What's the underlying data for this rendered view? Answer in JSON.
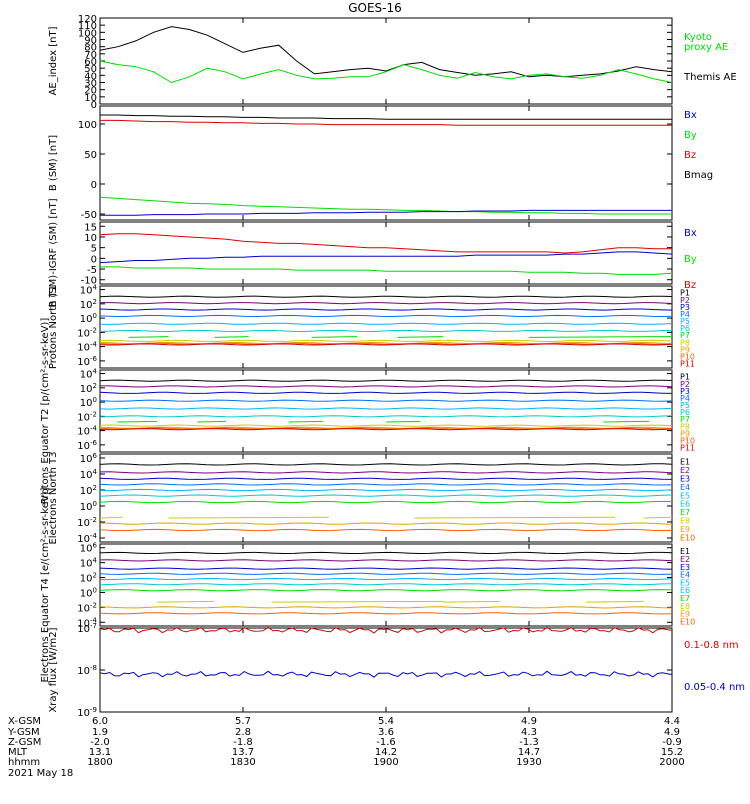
{
  "title": "GOES-16",
  "colors": {
    "black": "#000000",
    "green": "#00dd00",
    "blue": "#0000cc",
    "red": "#dd0000",
    "p": [
      "#000000",
      "#7a007a",
      "#0000cc",
      "#0070ff",
      "#00b4ff",
      "#00cccc",
      "#00dd00",
      "#cccc00",
      "#e8a000",
      "#ff6000",
      "#dd0000"
    ],
    "e": [
      "#000000",
      "#7a007a",
      "#0000cc",
      "#0070ff",
      "#00b4ff",
      "#00cccc",
      "#00dd00",
      "#cccc00",
      "#e8a000",
      "#ff6000",
      "#dd0000"
    ]
  },
  "chart_data": [
    {
      "id": "ae",
      "type": "line",
      "ylabel": "AE_index [nT]",
      "ylim": [
        0,
        120
      ],
      "yticks": [
        "0",
        "10",
        "20",
        "30",
        "40",
        "50",
        "60",
        "70",
        "80",
        "90",
        "100",
        "110",
        "120"
      ],
      "legend": [
        {
          "name": "Kyoto proxy AE",
          "color": "#00dd00"
        },
        {
          "name": "Themis AE",
          "color": "#000000"
        }
      ],
      "series": [
        {
          "name": "Themis AE",
          "color": "#000000",
          "values": [
            75,
            80,
            88,
            100,
            108,
            104,
            96,
            84,
            72,
            78,
            82,
            60,
            42,
            45,
            48,
            50,
            46,
            55,
            58,
            48,
            44,
            40,
            42,
            45,
            38,
            40,
            38,
            40,
            42,
            46,
            52,
            48,
            45
          ]
        },
        {
          "name": "Kyoto proxy AE",
          "color": "#00dd00",
          "values": [
            60,
            55,
            52,
            45,
            30,
            38,
            50,
            45,
            35,
            42,
            48,
            40,
            35,
            36,
            38,
            38,
            45,
            55,
            48,
            40,
            36,
            44,
            38,
            35,
            40,
            42,
            38,
            36,
            40,
            48,
            42,
            35,
            30
          ]
        }
      ]
    },
    {
      "id": "bsm",
      "type": "line",
      "ylabel": "B (SM) [nT]",
      "ylim": [
        -60,
        130
      ],
      "yticks": [
        "-50",
        "0",
        "50",
        "100"
      ],
      "legend": [
        {
          "name": "Bx",
          "color": "#0000cc"
        },
        {
          "name": "By",
          "color": "#00dd00"
        },
        {
          "name": "Bz",
          "color": "#dd0000"
        },
        {
          "name": "Bmag",
          "color": "#000000"
        }
      ],
      "series": [
        {
          "name": "Bmag",
          "color": "#000000",
          "values": [
            115,
            115,
            114,
            114,
            113,
            113,
            112,
            112,
            111,
            111,
            110,
            110,
            110,
            109,
            109,
            109,
            108,
            108,
            108,
            108,
            108,
            108,
            108,
            108,
            108,
            108,
            108,
            108,
            108,
            108,
            108,
            108,
            108
          ]
        },
        {
          "name": "Bz",
          "color": "#dd0000",
          "values": [
            106,
            106,
            105,
            104,
            104,
            103,
            103,
            102,
            102,
            101,
            101,
            100,
            100,
            99,
            99,
            99,
            99,
            99,
            99,
            99,
            98,
            98,
            98,
            98,
            98,
            98,
            98,
            98,
            98,
            98,
            98,
            98,
            98
          ]
        },
        {
          "name": "By",
          "color": "#00dd00",
          "values": [
            -22,
            -24,
            -26,
            -28,
            -30,
            -32,
            -33,
            -34,
            -36,
            -37,
            -38,
            -39,
            -40,
            -41,
            -42,
            -42,
            -43,
            -44,
            -44,
            -45,
            -46,
            -46,
            -47,
            -47,
            -48,
            -48,
            -49,
            -49,
            -50,
            -50,
            -50,
            -50,
            -50
          ]
        },
        {
          "name": "Bx",
          "color": "#0000cc",
          "values": [
            -52,
            -52,
            -52,
            -51,
            -51,
            -51,
            -50,
            -50,
            -50,
            -49,
            -49,
            -49,
            -48,
            -48,
            -48,
            -47,
            -47,
            -47,
            -46,
            -46,
            -46,
            -45,
            -45,
            -45,
            -44,
            -44,
            -44,
            -44,
            -44,
            -44,
            -44,
            -44,
            -44
          ]
        }
      ]
    },
    {
      "id": "bdiff",
      "type": "line",
      "ylabel": "B (SM)-IGRF (SM) [nT]",
      "ylim": [
        -12,
        17
      ],
      "yticks": [
        "-10",
        "-5",
        "0",
        "5",
        "10",
        "15"
      ],
      "legend": [
        {
          "name": "Bx",
          "color": "#0000cc"
        },
        {
          "name": "By",
          "color": "#00dd00"
        },
        {
          "name": "Bz",
          "color": "#dd0000"
        }
      ],
      "series": [
        {
          "name": "Bz",
          "color": "#dd0000",
          "values": [
            11,
            11.5,
            11.5,
            11,
            10.5,
            10,
            9.5,
            9,
            8,
            7.5,
            7,
            7,
            6.5,
            6,
            5.5,
            5,
            5,
            4.5,
            4,
            3.5,
            3,
            3,
            3,
            3,
            3,
            3,
            2.5,
            3,
            4,
            5,
            5,
            4.5,
            4.5
          ]
        },
        {
          "name": "Bx",
          "color": "#0000cc",
          "values": [
            -2,
            -1.5,
            -1,
            -1,
            -0.5,
            0,
            0,
            0.5,
            0.5,
            1,
            1,
            1,
            1,
            1,
            1,
            1,
            1,
            1,
            1,
            1,
            1,
            1.5,
            1.5,
            1.5,
            1.5,
            1.5,
            2,
            2,
            2.5,
            3,
            3,
            2.5,
            2
          ]
        },
        {
          "name": "By",
          "color": "#00dd00",
          "values": [
            -4,
            -4,
            -4.5,
            -4.5,
            -4.5,
            -4.5,
            -5,
            -5,
            -5,
            -5,
            -5,
            -5.5,
            -5.5,
            -5.5,
            -5.5,
            -5.5,
            -6,
            -6,
            -6,
            -6,
            -6,
            -6,
            -6,
            -6,
            -6.5,
            -6.5,
            -6.5,
            -7,
            -7,
            -7.5,
            -7.5,
            -7.5,
            -7
          ]
        }
      ]
    },
    {
      "id": "pn",
      "type": "line",
      "log": true,
      "ylabel": "Protons North T1",
      "ylim": [
        -7,
        4.5
      ],
      "yticks": [
        "10^-6",
        "10^-4",
        "10^-2",
        "10^0",
        "10^2",
        "10^4"
      ],
      "legend": [
        "P1",
        "P2",
        "P3",
        "P4",
        "P5",
        "P6",
        "P7",
        "P8",
        "P9",
        "P10",
        "P11"
      ],
      "levels": [
        3,
        2.1,
        1.2,
        0.3,
        -0.8,
        -1.8,
        -2.7,
        -3.2,
        -3.5,
        -3.6,
        -3.7
      ],
      "segments": {
        "P7": [
          [
            0.05,
            0.12
          ],
          [
            0.2,
            0.26
          ],
          [
            0.37,
            0.45
          ],
          [
            0.52,
            0.6
          ],
          [
            0.75,
            1.0
          ]
        ]
      }
    },
    {
      "id": "pe",
      "type": "line",
      "log": true,
      "ylabel": "Protons Equator T2 [p/(cm²-s-sr-keV)]",
      "ylim": [
        -7,
        4.5
      ],
      "yticks": [
        "10^-6",
        "10^-4",
        "10^-2",
        "10^0",
        "10^2",
        "10^4"
      ],
      "legend": [
        "P1",
        "P2",
        "P3",
        "P4",
        "P5",
        "P6",
        "P7",
        "P8",
        "P9",
        "P10",
        "P11"
      ],
      "levels": [
        3,
        2.2,
        1.3,
        0.2,
        -0.9,
        -2.0,
        -2.8,
        -3.3,
        -3.6,
        -3.7,
        -3.8
      ],
      "segments": {
        "P7": [
          [
            0.03,
            0.1
          ],
          [
            0.17,
            0.22
          ],
          [
            0.33,
            0.39
          ],
          [
            0.5,
            0.56
          ],
          [
            0.88,
            0.96
          ]
        ]
      }
    },
    {
      "id": "en",
      "type": "line",
      "log": true,
      "ylabel": "Electrons North T3",
      "ylim": [
        -4.5,
        6.5
      ],
      "yticks": [
        "10^-4",
        "10^-2",
        "10^0",
        "10^2",
        "10^4",
        "10^6"
      ],
      "legend": [
        "E1",
        "E2",
        "E3",
        "E4",
        "E5",
        "E6",
        "E7",
        "E8",
        "E9",
        "E10"
      ],
      "levels": [
        5.2,
        4.2,
        3.4,
        2.7,
        2.0,
        1.3,
        0.5,
        -1.5,
        -2.2,
        -3.0
      ],
      "segments": {
        "E8": [
          [
            0.0,
            0.04
          ],
          [
            0.12,
            0.4
          ],
          [
            0.55,
            0.9
          ],
          [
            0.95,
            1.0
          ]
        ]
      }
    },
    {
      "id": "ee",
      "type": "line",
      "log": true,
      "ylabel": "Electrons Equator T4 [e/(cm²-s-sr-keV)]",
      "ylim": [
        -4.5,
        6.5
      ],
      "yticks": [
        "10^-4",
        "10^-2",
        "10^0",
        "10^2",
        "10^4",
        "10^6"
      ],
      "legend": [
        "E1",
        "E2",
        "E3",
        "E4",
        "E5",
        "E6",
        "E7",
        "E8",
        "E9",
        "E10"
      ],
      "levels": [
        5.3,
        4.3,
        3.2,
        2.5,
        1.8,
        1.1,
        0.3,
        -1.3,
        -2.0,
        -2.8
      ],
      "segments": {
        "E8": [
          [
            0.1,
            0.2
          ],
          [
            0.3,
            0.6
          ],
          [
            0.6,
            0.7
          ],
          [
            0.85,
            0.95
          ]
        ]
      }
    },
    {
      "id": "xray",
      "type": "line",
      "log": true,
      "ylabel": "Xray flux [W/m2]",
      "ylim": [
        -9,
        -7
      ],
      "yticks": [
        "10^-9",
        "10^-8",
        "10^-7"
      ],
      "legend": [
        {
          "name": "0.1-0.8 nm",
          "color": "#dd0000"
        },
        {
          "name": "0.05-0.4 nm",
          "color": "#0000cc"
        }
      ],
      "series": [
        {
          "name": "0.1-0.8 nm",
          "color": "#dd0000",
          "center": -7.05
        },
        {
          "name": "0.05-0.4 nm",
          "color": "#0000cc",
          "center": -8.1
        }
      ]
    }
  ],
  "x_axis": {
    "ticks": [
      {
        "x": "1800",
        "xgsm": "6.0",
        "ygsm": "1.9",
        "zgsm": "-2.0",
        "mlt": "13.1"
      },
      {
        "x": "1830",
        "xgsm": "5.7",
        "ygsm": "2.8",
        "zgsm": "-1.8",
        "mlt": "13.7"
      },
      {
        "x": "1900",
        "xgsm": "5.4",
        "ygsm": "3.6",
        "zgsm": "-1.6",
        "mlt": "14.2"
      },
      {
        "x": "1930",
        "xgsm": "4.9",
        "ygsm": "4.3",
        "zgsm": "-1.3",
        "mlt": "14.7"
      },
      {
        "x": "2000",
        "xgsm": "4.4",
        "ygsm": "4.9",
        "zgsm": "-0.9",
        "mlt": "15.2"
      }
    ],
    "row_labels": [
      "X-GSM",
      "Y-GSM",
      "Z-GSM",
      "MLT",
      "hhmm"
    ],
    "date": "2021 May 18"
  }
}
